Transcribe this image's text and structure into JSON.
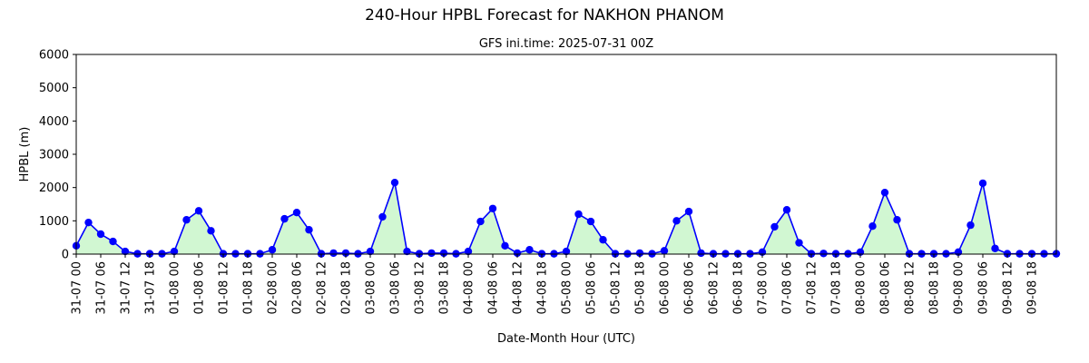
{
  "chart_data": {
    "type": "line",
    "title": "240-Hour HPBL Forecast for NAKHON PHANOM",
    "subtitle": "GFS ini.time: 2025-07-31 00Z",
    "xlabel": "Date-Month Hour (UTC)",
    "ylabel": "HPBL (m)",
    "ylim": [
      0,
      6000
    ],
    "yticks": [
      0,
      1000,
      2000,
      3000,
      4000,
      5000,
      6000
    ],
    "tick_step_hours": 6,
    "x_step_hours": 3,
    "xtick_labels": [
      "31-07 00",
      "31-07 06",
      "31-07 12",
      "31-07 18",
      "01-08 00",
      "01-08 06",
      "01-08 12",
      "01-08 18",
      "02-08 00",
      "02-08 06",
      "02-08 12",
      "02-08 18",
      "03-08 00",
      "03-08 06",
      "03-08 12",
      "03-08 18",
      "04-08 00",
      "04-08 06",
      "04-08 12",
      "04-08 18",
      "05-08 00",
      "05-08 06",
      "05-08 12",
      "05-08 18",
      "06-08 00",
      "06-08 06",
      "06-08 12",
      "06-08 18",
      "07-08 00",
      "07-08 06",
      "07-08 12",
      "07-08 18",
      "08-08 00",
      "08-08 06",
      "08-08 12",
      "08-08 18",
      "09-08 00",
      "09-08 06",
      "09-08 12",
      "09-08 18"
    ],
    "series": [
      {
        "values": [
          250,
          950,
          600,
          380,
          80,
          10,
          10,
          10,
          80,
          1030,
          1300,
          700,
          10,
          10,
          10,
          10,
          130,
          1060,
          1250,
          730,
          10,
          30,
          30,
          10,
          80,
          1120,
          2150,
          80,
          10,
          30,
          30,
          10,
          80,
          980,
          1370,
          250,
          30,
          130,
          10,
          10,
          80,
          1200,
          980,
          430,
          10,
          10,
          30,
          10,
          100,
          1000,
          1280,
          30,
          10,
          10,
          10,
          10,
          60,
          820,
          1330,
          340,
          10,
          20,
          10,
          10,
          60,
          840,
          1850,
          1030,
          10,
          10,
          10,
          10,
          60,
          870,
          2130,
          170,
          10,
          10,
          10,
          10,
          10
        ]
      }
    ],
    "grid": false,
    "colors": {
      "line": "#0000ff",
      "marker": "#0000ff",
      "fill": "#d1f7d2",
      "axes": "#000000"
    }
  }
}
